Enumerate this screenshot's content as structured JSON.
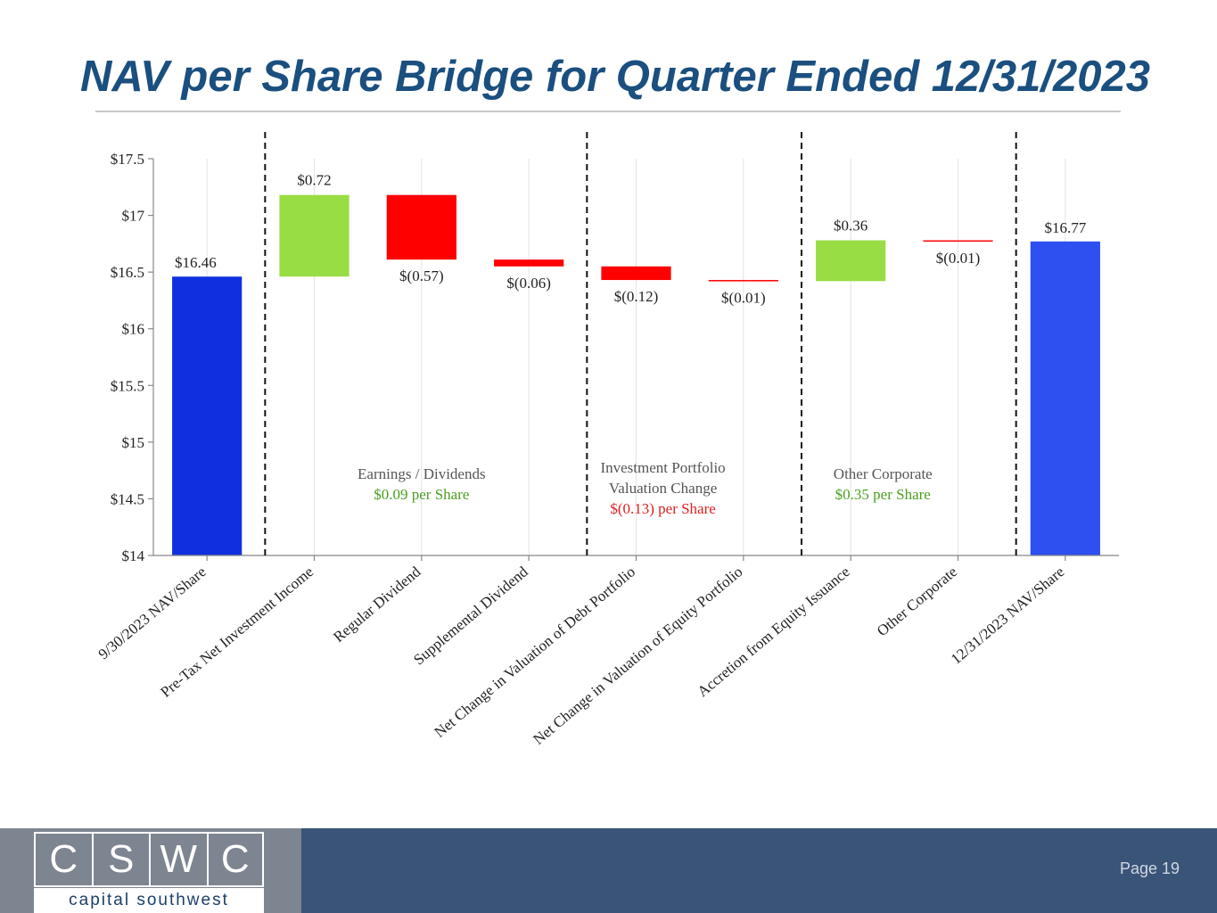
{
  "slide": {
    "title": "NAV per Share Bridge for Quarter Ended 12/31/2023",
    "page": "Page 19"
  },
  "logo": {
    "letters": [
      "C",
      "S",
      "W",
      "C"
    ],
    "name": "capital southwest"
  },
  "colors": {
    "title": "#1a4f7f",
    "start_bar": "#1030e0",
    "end_bar": "#2e50f0",
    "increase": "#99dd44",
    "decrease": "#ff0000",
    "positive_note": "#4aa020",
    "negative_note": "#e02020",
    "footer_left": "#7d8590",
    "footer_right": "#3a5478"
  },
  "chart_data": {
    "type": "waterfall",
    "title": "NAV per Share Bridge for Quarter Ended 12/31/2023",
    "ylim": [
      14,
      17.5
    ],
    "yticks": [
      14,
      14.5,
      15,
      15.5,
      16,
      16.5,
      17,
      17.5
    ],
    "ytick_labels": [
      "$14",
      "$14.5",
      "$15",
      "$15.5",
      "$16",
      "$16.5",
      "$17",
      "$17.5"
    ],
    "grid": "vertical",
    "bars": [
      {
        "category": "9/30/2023 NAV/Share",
        "kind": "total",
        "base": 14,
        "top": 16.46,
        "label": "$16.46"
      },
      {
        "category": "Pre-Tax Net Investment Income",
        "kind": "increase",
        "base": 16.46,
        "top": 17.18,
        "label": "$0.72"
      },
      {
        "category": "Regular Dividend",
        "kind": "decrease",
        "base": 16.61,
        "top": 17.18,
        "label": "$(0.57)"
      },
      {
        "category": "Supplemental Dividend",
        "kind": "decrease",
        "base": 16.55,
        "top": 16.61,
        "label": "$(0.06)"
      },
      {
        "category": "Net Change in Valuation of Debt Portfolio",
        "kind": "decrease",
        "base": 16.43,
        "top": 16.55,
        "label": "$(0.12)"
      },
      {
        "category": "Net Change in Valuation of Equity Portfolio",
        "kind": "decrease",
        "base": 16.42,
        "top": 16.43,
        "label": "$(0.01)"
      },
      {
        "category": "Accretion from Equity Issuance",
        "kind": "increase",
        "base": 16.42,
        "top": 16.78,
        "label": "$0.36"
      },
      {
        "category": "Other Corporate",
        "kind": "decrease",
        "base": 16.77,
        "top": 16.78,
        "label": "$(0.01)"
      },
      {
        "category": "12/31/2023 NAV/Share",
        "kind": "total",
        "base": 14,
        "top": 16.77,
        "label": "$16.77"
      }
    ],
    "dividers_after_index": [
      0,
      3,
      5,
      7
    ],
    "group_annotations": [
      {
        "lines": [
          "Earnings / Dividends"
        ],
        "value": "$0.09 per Share",
        "sign": "positive",
        "center_index": 2
      },
      {
        "lines": [
          "Investment Portfolio",
          "Valuation Change"
        ],
        "value": "$(0.13) per Share",
        "sign": "negative",
        "center_index": 4.25
      },
      {
        "lines": [
          "Other Corporate"
        ],
        "value": "$0.35 per Share",
        "sign": "positive",
        "center_index": 6.3
      }
    ]
  }
}
